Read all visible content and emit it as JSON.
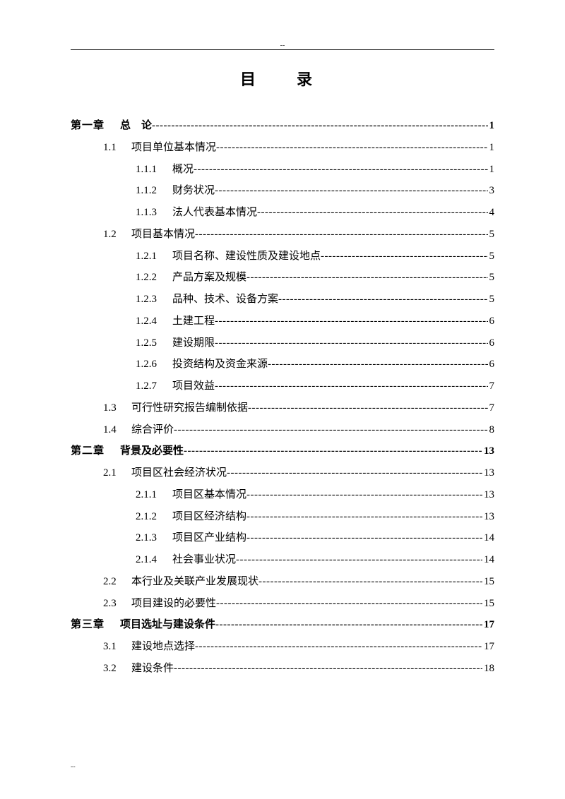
{
  "title": "目　录",
  "entries": [
    {
      "level": 1,
      "num": "第一章",
      "label": "总　论",
      "page": "1"
    },
    {
      "level": 2,
      "num": "1.1",
      "label": "项目单位基本情况",
      "page": "1"
    },
    {
      "level": 3,
      "num": "1.1.1",
      "label": "概况",
      "page": "1"
    },
    {
      "level": 3,
      "num": "1.1.2",
      "label": "财务状况",
      "page": "3"
    },
    {
      "level": 3,
      "num": "1.1.3",
      "label": "法人代表基本情况",
      "page": "4"
    },
    {
      "level": 2,
      "num": "1.2",
      "label": "项目基本情况",
      "page": "5"
    },
    {
      "level": 3,
      "num": "1.2.1",
      "label": "项目名称、建设性质及建设地点",
      "page": "5"
    },
    {
      "level": 3,
      "num": "1.2.2",
      "label": "产品方案及规模",
      "page": "5"
    },
    {
      "level": 3,
      "num": "1.2.3",
      "label": "品种、技术、设备方案",
      "page": "5"
    },
    {
      "level": 3,
      "num": "1.2.4",
      "label": "土建工程",
      "page": "6"
    },
    {
      "level": 3,
      "num": "1.2.5",
      "label": "建设期限",
      "page": "6"
    },
    {
      "level": 3,
      "num": "1.2.6",
      "label": "投资结构及资金来源",
      "page": "6"
    },
    {
      "level": 3,
      "num": "1.2.7",
      "label": "项目效益",
      "page": "7"
    },
    {
      "level": 2,
      "num": "1.3",
      "label": "可行性研究报告编制依据",
      "page": "7"
    },
    {
      "level": 2,
      "num": "1.4",
      "label": "综合评价",
      "page": "8"
    },
    {
      "level": 1,
      "num": "第二章",
      "label": "背景及必要性",
      "page": "13"
    },
    {
      "level": 2,
      "num": "2.1",
      "label": "项目区社会经济状况",
      "page": "13"
    },
    {
      "level": 3,
      "num": "2.1.1",
      "label": "项目区基本情况",
      "page": "13"
    },
    {
      "level": 3,
      "num": "2.1.2",
      "label": "项目区经济结构",
      "page": "13"
    },
    {
      "level": 3,
      "num": "2.1.3",
      "label": "项目区产业结构",
      "page": "14"
    },
    {
      "level": 3,
      "num": "2.1.4",
      "label": "社会事业状况",
      "page": "14"
    },
    {
      "level": 2,
      "num": "2.2",
      "label": "本行业及关联产业发展现状",
      "page": "15"
    },
    {
      "level": 2,
      "num": "2.3",
      "label": "项目建设的必要性",
      "page": "15"
    },
    {
      "level": 1,
      "num": "第三章",
      "label": "项目选址与建设条件",
      "page": "17"
    },
    {
      "level": 2,
      "num": "3.1",
      "label": "建设地点选择",
      "page": "17"
    },
    {
      "level": 2,
      "num": "3.2",
      "label": "建设条件",
      "page": "18"
    }
  ],
  "footer": "--"
}
